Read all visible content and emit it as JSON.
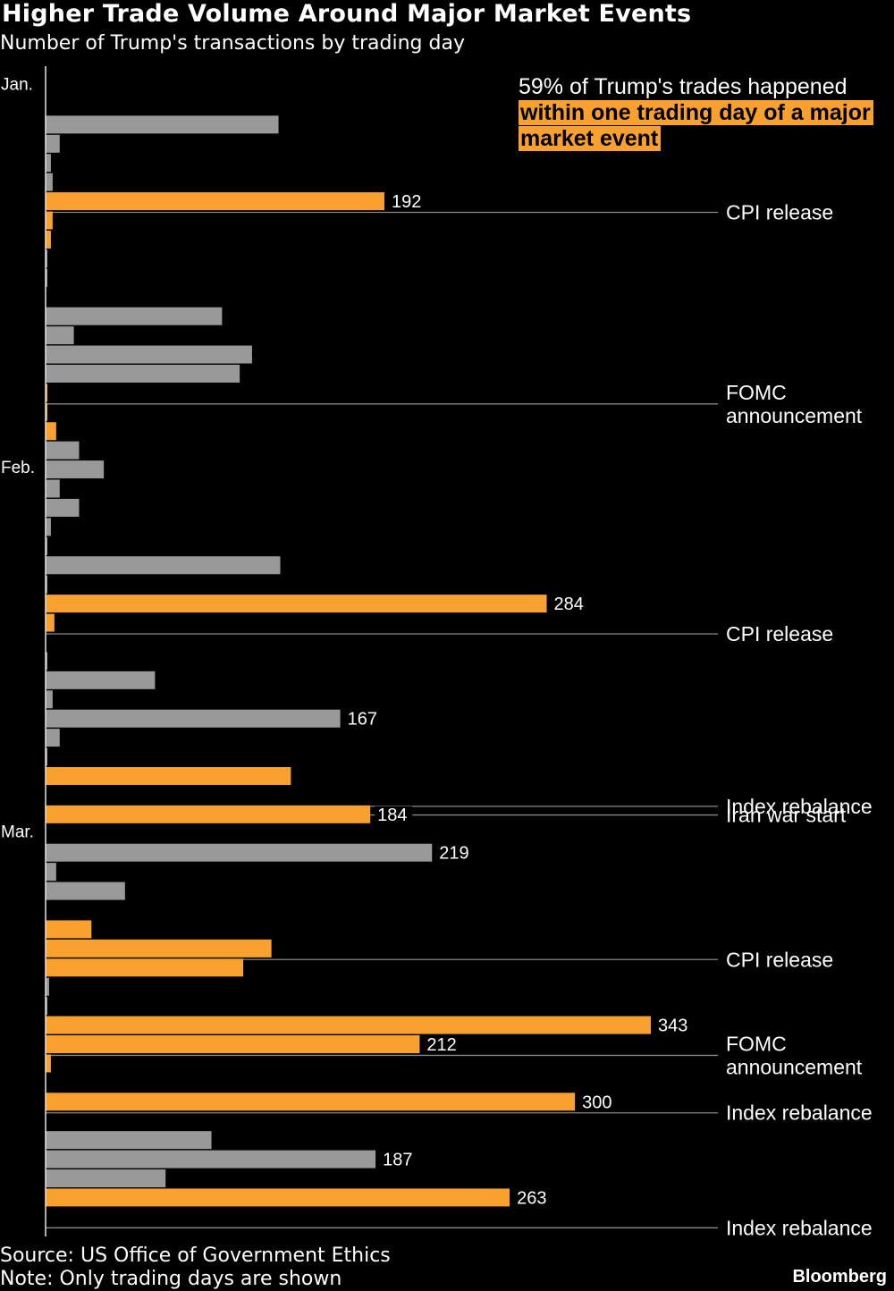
{
  "title": "Higher Trade Volume Around Major Market Events",
  "subtitle": "Number of Trump's transactions by trading day",
  "callout": {
    "line1": "59% of Trump's trades happened",
    "line2": "within one trading day of a major",
    "line3": "market event"
  },
  "colors": {
    "event": "#F9A12E",
    "normal": "#999999",
    "background": "#000000",
    "rule": "#888888"
  },
  "footer": {
    "source": "Source: US Office of Government Ethics",
    "note": "Note: Only trading days are shown",
    "brand": "Bloomberg"
  },
  "chart_data": {
    "type": "bar",
    "orientation": "horizontal",
    "xlim": [
      0,
      343
    ],
    "grid": false,
    "months": [
      {
        "label": "Jan.",
        "day_index": 0
      },
      {
        "label": "Feb.",
        "day_index": 20
      },
      {
        "label": "Mar.",
        "day_index": 39
      }
    ],
    "days": [
      {
        "value": 0,
        "event": false
      },
      {
        "value": 0,
        "event": false
      },
      {
        "value": 132,
        "event": false
      },
      {
        "value": 8,
        "event": false
      },
      {
        "value": 3,
        "event": false
      },
      {
        "value": 4,
        "event": false
      },
      {
        "value": 192,
        "event": true,
        "label": "192"
      },
      {
        "value": 4,
        "event": true
      },
      {
        "value": 3,
        "event": true
      },
      {
        "value": 1,
        "event": false
      },
      {
        "value": 1,
        "event": false
      },
      {
        "value": 0,
        "event": false
      },
      {
        "value": 100,
        "event": false
      },
      {
        "value": 16,
        "event": false
      },
      {
        "value": 117,
        "event": false
      },
      {
        "value": 110,
        "event": false
      },
      {
        "value": 1,
        "event": true
      },
      {
        "value": 1,
        "event": true
      },
      {
        "value": 6,
        "event": true
      },
      {
        "value": 19,
        "event": false
      },
      {
        "value": 33,
        "event": false
      },
      {
        "value": 8,
        "event": false
      },
      {
        "value": 19,
        "event": false
      },
      {
        "value": 3,
        "event": false
      },
      {
        "value": 1,
        "event": false
      },
      {
        "value": 133,
        "event": false
      },
      {
        "value": 1,
        "event": false
      },
      {
        "value": 284,
        "event": true,
        "label": "284"
      },
      {
        "value": 5,
        "event": true
      },
      {
        "value": 0,
        "event": false
      },
      {
        "value": 1,
        "event": false
      },
      {
        "value": 62,
        "event": false
      },
      {
        "value": 4,
        "event": false
      },
      {
        "value": 167,
        "event": false,
        "label": "167"
      },
      {
        "value": 8,
        "event": false
      },
      {
        "value": 1,
        "event": false
      },
      {
        "value": 139,
        "event": true
      },
      {
        "value": 0,
        "event": false
      },
      {
        "value": 184,
        "event": true,
        "label": "184"
      },
      {
        "value": 0,
        "event": false
      },
      {
        "value": 219,
        "event": false,
        "label": "219"
      },
      {
        "value": 6,
        "event": false
      },
      {
        "value": 45,
        "event": false
      },
      {
        "value": 0,
        "event": false
      },
      {
        "value": 26,
        "event": true
      },
      {
        "value": 128,
        "event": true
      },
      {
        "value": 112,
        "event": true
      },
      {
        "value": 2,
        "event": false
      },
      {
        "value": 1,
        "event": false
      },
      {
        "value": 343,
        "event": true,
        "label": "343"
      },
      {
        "value": 212,
        "event": true,
        "label": "212"
      },
      {
        "value": 3,
        "event": true
      },
      {
        "value": 0,
        "event": false
      },
      {
        "value": 300,
        "event": true,
        "label": "300"
      },
      {
        "value": 0,
        "event": false
      },
      {
        "value": 94,
        "event": false
      },
      {
        "value": 187,
        "event": false,
        "label": "187"
      },
      {
        "value": 68,
        "event": false
      },
      {
        "value": 263,
        "event": true,
        "label": "263"
      },
      {
        "value": 0,
        "event": false
      }
    ],
    "events": [
      {
        "day_index": 7.0,
        "label": [
          "CPI release"
        ]
      },
      {
        "day_index": 17.0,
        "label": [
          "FOMC",
          "announcement"
        ]
      },
      {
        "day_index": 29.0,
        "label": [
          "CPI release"
        ]
      },
      {
        "day_index": 38.0,
        "label": [
          "Index rebalance"
        ]
      },
      {
        "day_index": 38.5,
        "label": [
          "Iran war start"
        ]
      },
      {
        "day_index": 46.0,
        "label": [
          "CPI release"
        ]
      },
      {
        "day_index": 51.0,
        "label": [
          "FOMC",
          "announcement"
        ]
      },
      {
        "day_index": 54.0,
        "label": [
          "Index rebalance"
        ]
      },
      {
        "day_index": 60.0,
        "label": [
          "Index rebalance"
        ]
      }
    ]
  }
}
